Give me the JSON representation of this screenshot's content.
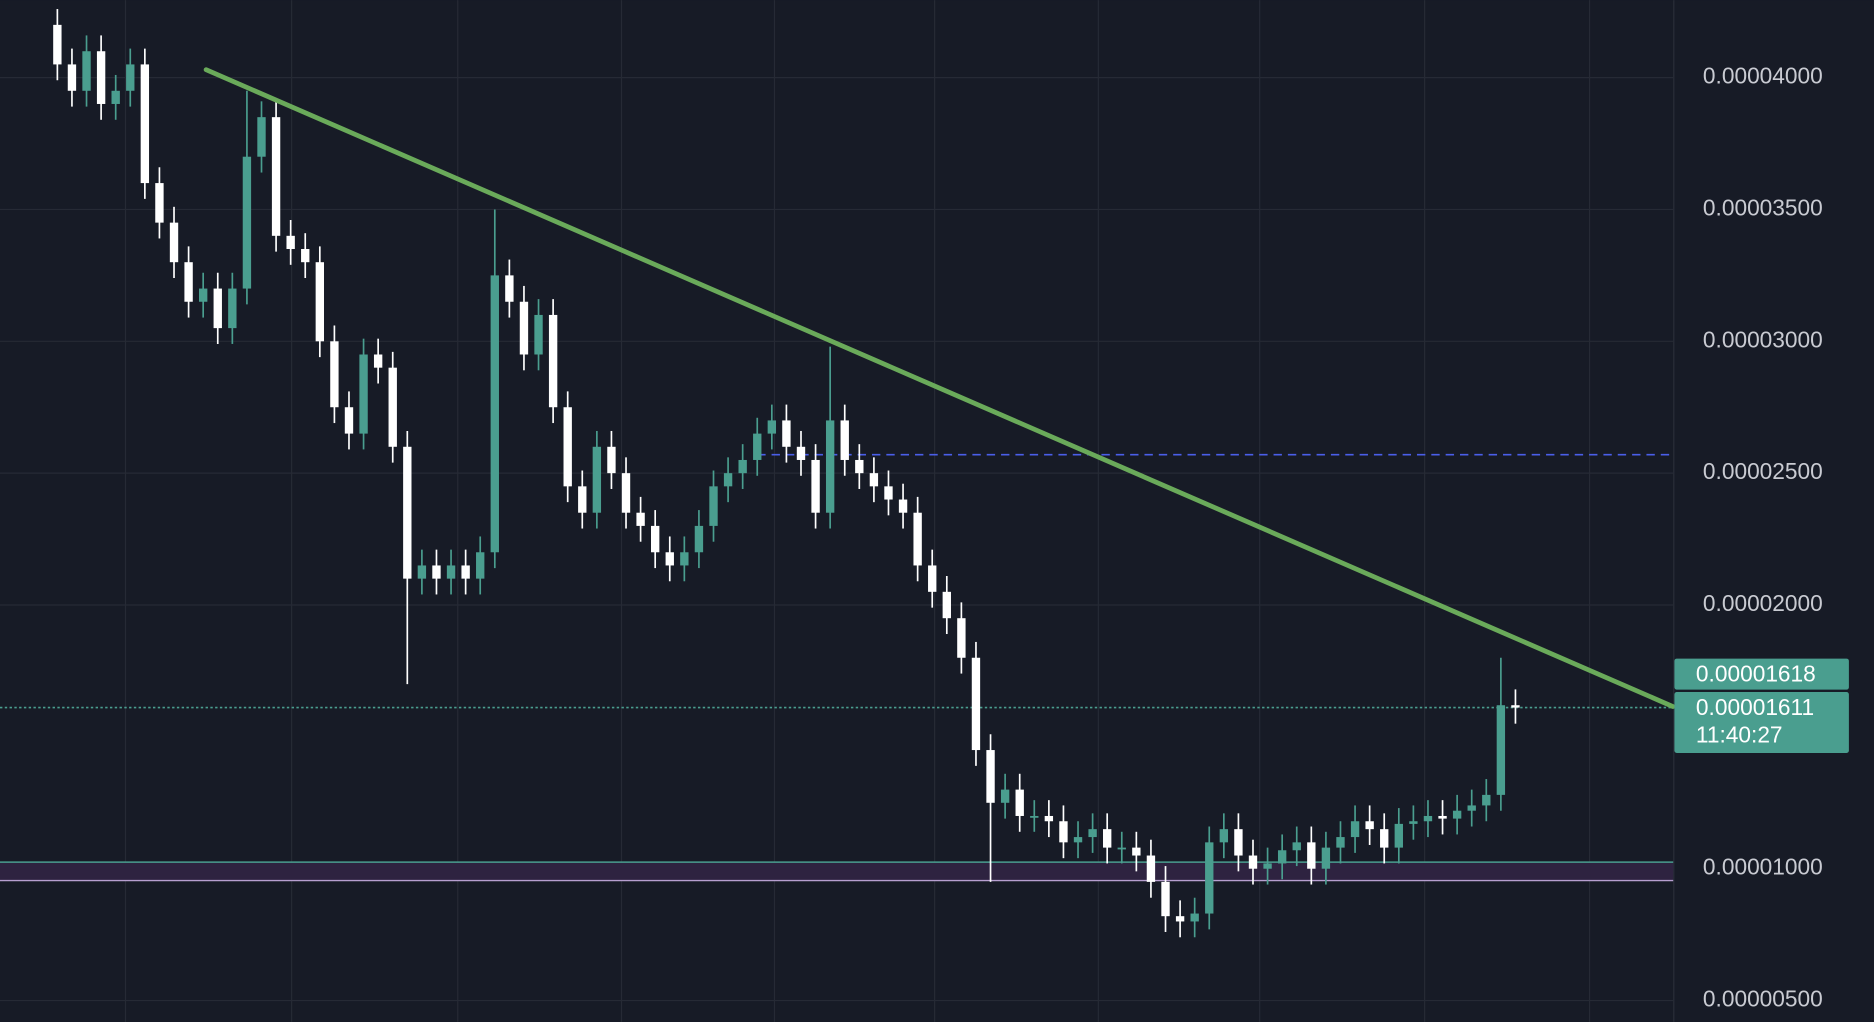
{
  "chart_data": {
    "type": "candlestick",
    "up_color": "#4a9e8f",
    "down_color": "#ffffff",
    "open": [
      4.2e-05,
      4.05e-05,
      3.95e-05,
      4.1e-05,
      3.9e-05,
      3.95e-05,
      4.05e-05,
      3.6e-05,
      3.45e-05,
      3.3e-05,
      3.15e-05,
      3.2e-05,
      3.05e-05,
      3.2e-05,
      3.7e-05,
      3.85e-05,
      3.4e-05,
      3.35e-05,
      3.3e-05,
      3e-05,
      2.75e-05,
      2.65e-05,
      2.95e-05,
      2.9e-05,
      2.6e-05,
      2.1e-05,
      2.15e-05,
      2.1e-05,
      2.15e-05,
      2.1e-05,
      2.2e-05,
      3.25e-05,
      3.15e-05,
      2.95e-05,
      3.1e-05,
      2.75e-05,
      2.45e-05,
      2.35e-05,
      2.6e-05,
      2.5e-05,
      2.35e-05,
      2.3e-05,
      2.2e-05,
      2.15e-05,
      2.2e-05,
      2.3e-05,
      2.45e-05,
      2.5e-05,
      2.55e-05,
      2.65e-05,
      2.7e-05,
      2.6e-05,
      2.55e-05,
      2.35e-05,
      2.7e-05,
      2.55e-05,
      2.5e-05,
      2.45e-05,
      2.4e-05,
      2.35e-05,
      2.15e-05,
      2.05e-05,
      1.95e-05,
      1.8e-05,
      1.45e-05,
      1.25e-05,
      1.3e-05,
      1.2e-05,
      1.2e-05,
      1.18e-05,
      1.1e-05,
      1.12e-05,
      1.15e-05,
      1.08e-05,
      1.08e-05,
      1.05e-05,
      9.5e-06,
      8.2e-06,
      8e-06,
      8.3e-06,
      1.1e-05,
      1.15e-05,
      1.05e-05,
      1e-05,
      1.02e-05,
      1.07e-05,
      1.1e-05,
      1e-05,
      1.08e-05,
      1.12e-05,
      1.18e-05,
      1.15e-05,
      1.08e-05,
      1.17e-05,
      1.18e-05,
      1.2e-05,
      1.19e-05,
      1.22e-05,
      1.24e-05,
      1.28e-05,
      1.62e-05
    ],
    "high": [
      4.26e-05,
      4.11e-05,
      4.16e-05,
      4.16e-05,
      4.01e-05,
      4.11e-05,
      4.11e-05,
      3.66e-05,
      3.51e-05,
      3.36e-05,
      3.26e-05,
      3.26e-05,
      3.26e-05,
      3.95e-05,
      3.91e-05,
      3.91e-05,
      3.46e-05,
      3.41e-05,
      3.36e-05,
      3.06e-05,
      2.81e-05,
      3.01e-05,
      3.01e-05,
      2.96e-05,
      2.66e-05,
      2.21e-05,
      2.21e-05,
      2.21e-05,
      2.21e-05,
      2.26e-05,
      3.5e-05,
      3.31e-05,
      3.21e-05,
      3.16e-05,
      3.16e-05,
      2.81e-05,
      2.51e-05,
      2.66e-05,
      2.66e-05,
      2.56e-05,
      2.41e-05,
      2.36e-05,
      2.26e-05,
      2.26e-05,
      2.36e-05,
      2.51e-05,
      2.56e-05,
      2.61e-05,
      2.71e-05,
      2.76e-05,
      2.76e-05,
      2.66e-05,
      2.61e-05,
      2.98e-05,
      2.76e-05,
      2.61e-05,
      2.56e-05,
      2.51e-05,
      2.46e-05,
      2.41e-05,
      2.21e-05,
      2.11e-05,
      2.01e-05,
      1.86e-05,
      1.51e-05,
      1.36e-05,
      1.36e-05,
      1.26e-05,
      1.26e-05,
      1.24e-05,
      1.18e-05,
      1.21e-05,
      1.21e-05,
      1.14e-05,
      1.14e-05,
      1.11e-05,
      1.01e-05,
      8.8e-06,
      8.9e-06,
      1.16e-05,
      1.21e-05,
      1.21e-05,
      1.11e-05,
      1.08e-05,
      1.13e-05,
      1.16e-05,
      1.16e-05,
      1.14e-05,
      1.18e-05,
      1.24e-05,
      1.24e-05,
      1.21e-05,
      1.23e-05,
      1.24e-05,
      1.26e-05,
      1.26e-05,
      1.28e-05,
      1.3e-05,
      1.34e-05,
      1.8e-05,
      1.68e-05
    ],
    "low": [
      3.99e-05,
      3.89e-05,
      3.89e-05,
      3.84e-05,
      3.84e-05,
      3.89e-05,
      3.54e-05,
      3.39e-05,
      3.24e-05,
      3.09e-05,
      3.09e-05,
      2.99e-05,
      2.99e-05,
      3.14e-05,
      3.64e-05,
      3.34e-05,
      3.29e-05,
      3.24e-05,
      2.94e-05,
      2.69e-05,
      2.59e-05,
      2.59e-05,
      2.84e-05,
      2.54e-05,
      1.7e-05,
      2.04e-05,
      2.04e-05,
      2.04e-05,
      2.04e-05,
      2.04e-05,
      2.14e-05,
      3.09e-05,
      2.89e-05,
      2.89e-05,
      2.69e-05,
      2.39e-05,
      2.29e-05,
      2.29e-05,
      2.44e-05,
      2.29e-05,
      2.24e-05,
      2.14e-05,
      2.09e-05,
      2.09e-05,
      2.14e-05,
      2.24e-05,
      2.39e-05,
      2.44e-05,
      2.49e-05,
      2.59e-05,
      2.54e-05,
      2.49e-05,
      2.29e-05,
      2.29e-05,
      2.49e-05,
      2.44e-05,
      2.39e-05,
      2.34e-05,
      2.29e-05,
      2.09e-05,
      1.99e-05,
      1.89e-05,
      1.74e-05,
      1.39e-05,
      9.5e-06,
      1.19e-05,
      1.14e-05,
      1.14e-05,
      1.12e-05,
      1.04e-05,
      1.04e-05,
      1.06e-05,
      1.02e-05,
      1.02e-05,
      9.9e-06,
      8.9e-06,
      7.6e-06,
      7.4e-06,
      7.4e-06,
      7.7e-06,
      1.04e-05,
      9.9e-06,
      9.4e-06,
      9.4e-06,
      9.6e-06,
      1.01e-05,
      9.4e-06,
      9.4e-06,
      1.02e-05,
      1.06e-05,
      1.09e-05,
      1.02e-05,
      1.02e-05,
      1.11e-05,
      1.12e-05,
      1.13e-05,
      1.13e-05,
      1.16e-05,
      1.18e-05,
      1.22e-05,
      1.55e-05
    ],
    "close": [
      4.05e-05,
      3.95e-05,
      4.1e-05,
      3.9e-05,
      3.95e-05,
      4.05e-05,
      3.6e-05,
      3.45e-05,
      3.3e-05,
      3.15e-05,
      3.2e-05,
      3.05e-05,
      3.2e-05,
      3.7e-05,
      3.85e-05,
      3.4e-05,
      3.35e-05,
      3.3e-05,
      3e-05,
      2.75e-05,
      2.65e-05,
      2.95e-05,
      2.9e-05,
      2.6e-05,
      2.1e-05,
      2.15e-05,
      2.1e-05,
      2.15e-05,
      2.1e-05,
      2.2e-05,
      3.25e-05,
      3.15e-05,
      2.95e-05,
      3.1e-05,
      2.75e-05,
      2.45e-05,
      2.35e-05,
      2.6e-05,
      2.5e-05,
      2.35e-05,
      2.3e-05,
      2.2e-05,
      2.15e-05,
      2.2e-05,
      2.3e-05,
      2.45e-05,
      2.5e-05,
      2.55e-05,
      2.65e-05,
      2.7e-05,
      2.6e-05,
      2.55e-05,
      2.35e-05,
      2.7e-05,
      2.55e-05,
      2.5e-05,
      2.45e-05,
      2.4e-05,
      2.35e-05,
      2.15e-05,
      2.05e-05,
      1.95e-05,
      1.8e-05,
      1.45e-05,
      1.25e-05,
      1.3e-05,
      1.2e-05,
      1.2e-05,
      1.18e-05,
      1.1e-05,
      1.12e-05,
      1.15e-05,
      1.08e-05,
      1.08e-05,
      1.05e-05,
      9.5e-06,
      8.2e-06,
      8e-06,
      8.3e-06,
      1.1e-05,
      1.15e-05,
      1.05e-05,
      1e-05,
      1.02e-05,
      1.07e-05,
      1.1e-05,
      1e-05,
      1.08e-05,
      1.12e-05,
      1.18e-05,
      1.15e-05,
      1.08e-05,
      1.17e-05,
      1.18e-05,
      1.2e-05,
      1.19e-05,
      1.22e-05,
      1.24e-05,
      1.28e-05,
      1.62e-05,
      1.611e-05
    ],
    "ylim": [
      4.19e-06,
      4.294e-05
    ],
    "yticks": [
      {
        "value": 4e-05,
        "label": "0.00004000"
      },
      {
        "value": 3.5e-05,
        "label": "0.00003500"
      },
      {
        "value": 3e-05,
        "label": "0.00003000"
      },
      {
        "value": 2.5e-05,
        "label": "0.00002500"
      },
      {
        "value": 2e-05,
        "label": "0.00002000"
      },
      {
        "value": 1e-05,
        "label": "0.00001000"
      },
      {
        "value": 5e-06,
        "label": "0.00000500"
      }
    ],
    "grid": true,
    "trendline": {
      "x": [
        10.2,
        110.8
      ],
      "y": [
        4.03e-05,
        1.615e-05
      ],
      "color": "#6aaa5a"
    },
    "levels": [
      {
        "value": 2.57e-05,
        "from_index": 48,
        "style": "dashed",
        "color": "#4a5ee8"
      },
      {
        "value": 1.611e-05,
        "from_index": -4,
        "style": "dotted",
        "color": "#4a9e8f"
      }
    ],
    "zone": {
      "top": 1.025e-05,
      "bottom": 9.55e-06,
      "color": "#2e2340",
      "top_color": "#4a9e8f",
      "bottom_color": "#b79fd0"
    },
    "price_labels": [
      {
        "value": 1.618e-05,
        "label": "0.00001618"
      },
      {
        "value": 1.611e-05,
        "label": "0.00001611"
      }
    ],
    "countdown": "11:40:27"
  }
}
